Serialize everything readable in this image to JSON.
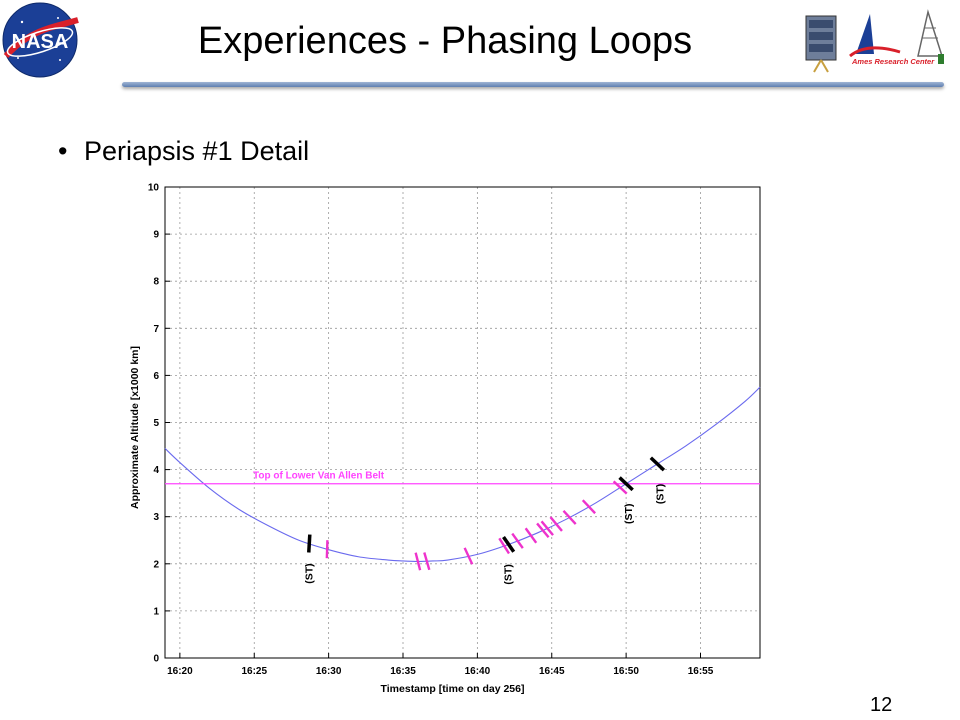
{
  "slide": {
    "title": "Experiences - Phasing Loops",
    "bullet": "Periapsis #1 Detail",
    "page_number": "12",
    "nasa_logo_text": "NASA",
    "ames_logo_text": "Ames Research Center"
  },
  "chart_data": {
    "type": "line",
    "title": "",
    "xlabel": "Timestamp [time on day 256]",
    "ylabel": "Approximate Altitude [x1000 km]",
    "xlim": [
      "16:19",
      "16:59"
    ],
    "ylim": [
      0,
      10
    ],
    "grid": true,
    "x_ticks": [
      "16:20",
      "16:25",
      "16:30",
      "16:35",
      "16:40",
      "16:45",
      "16:50",
      "16:55"
    ],
    "y_ticks": [
      "0",
      "1",
      "2",
      "3",
      "4",
      "5",
      "6",
      "7",
      "8",
      "9",
      "10"
    ],
    "series": [
      {
        "name": "",
        "color": "#6a6aee",
        "x": [
          "16:19",
          "16:20",
          "16:22",
          "16:24",
          "16:26",
          "16:28",
          "16:30",
          "16:32",
          "16:34",
          "16:35",
          "16:36",
          "16:37",
          "16:38",
          "16:40",
          "16:42",
          "16:44",
          "16:46",
          "16:48",
          "16:50",
          "16:52",
          "16:54",
          "16:56",
          "16:58",
          "16:59"
        ],
        "y": [
          4.45,
          4.15,
          3.6,
          3.15,
          2.8,
          2.5,
          2.3,
          2.15,
          2.08,
          2.06,
          2.05,
          2.06,
          2.08,
          2.2,
          2.4,
          2.65,
          2.95,
          3.3,
          3.7,
          4.1,
          4.5,
          4.95,
          5.45,
          5.75
        ]
      }
    ],
    "reference_line": {
      "label": "Top of Lower Van Allen Belt",
      "y": 3.7,
      "color": "#ff44ff"
    },
    "marks": {
      "st_label": "(ST)",
      "st_color": "#000000",
      "event_color": "#ee33cc",
      "st_times": [
        "16:28.7",
        "16:42.1",
        "16:50.0",
        "16:52.1"
      ],
      "event_times": [
        "16:29.9",
        "16:36.0",
        "16:36.6",
        "16:39.4",
        "16:41.8",
        "16:42.7",
        "16:43.6",
        "16:44.4",
        "16:44.7",
        "16:45.3",
        "16:46.2",
        "16:47.5",
        "16:49.6"
      ]
    }
  }
}
